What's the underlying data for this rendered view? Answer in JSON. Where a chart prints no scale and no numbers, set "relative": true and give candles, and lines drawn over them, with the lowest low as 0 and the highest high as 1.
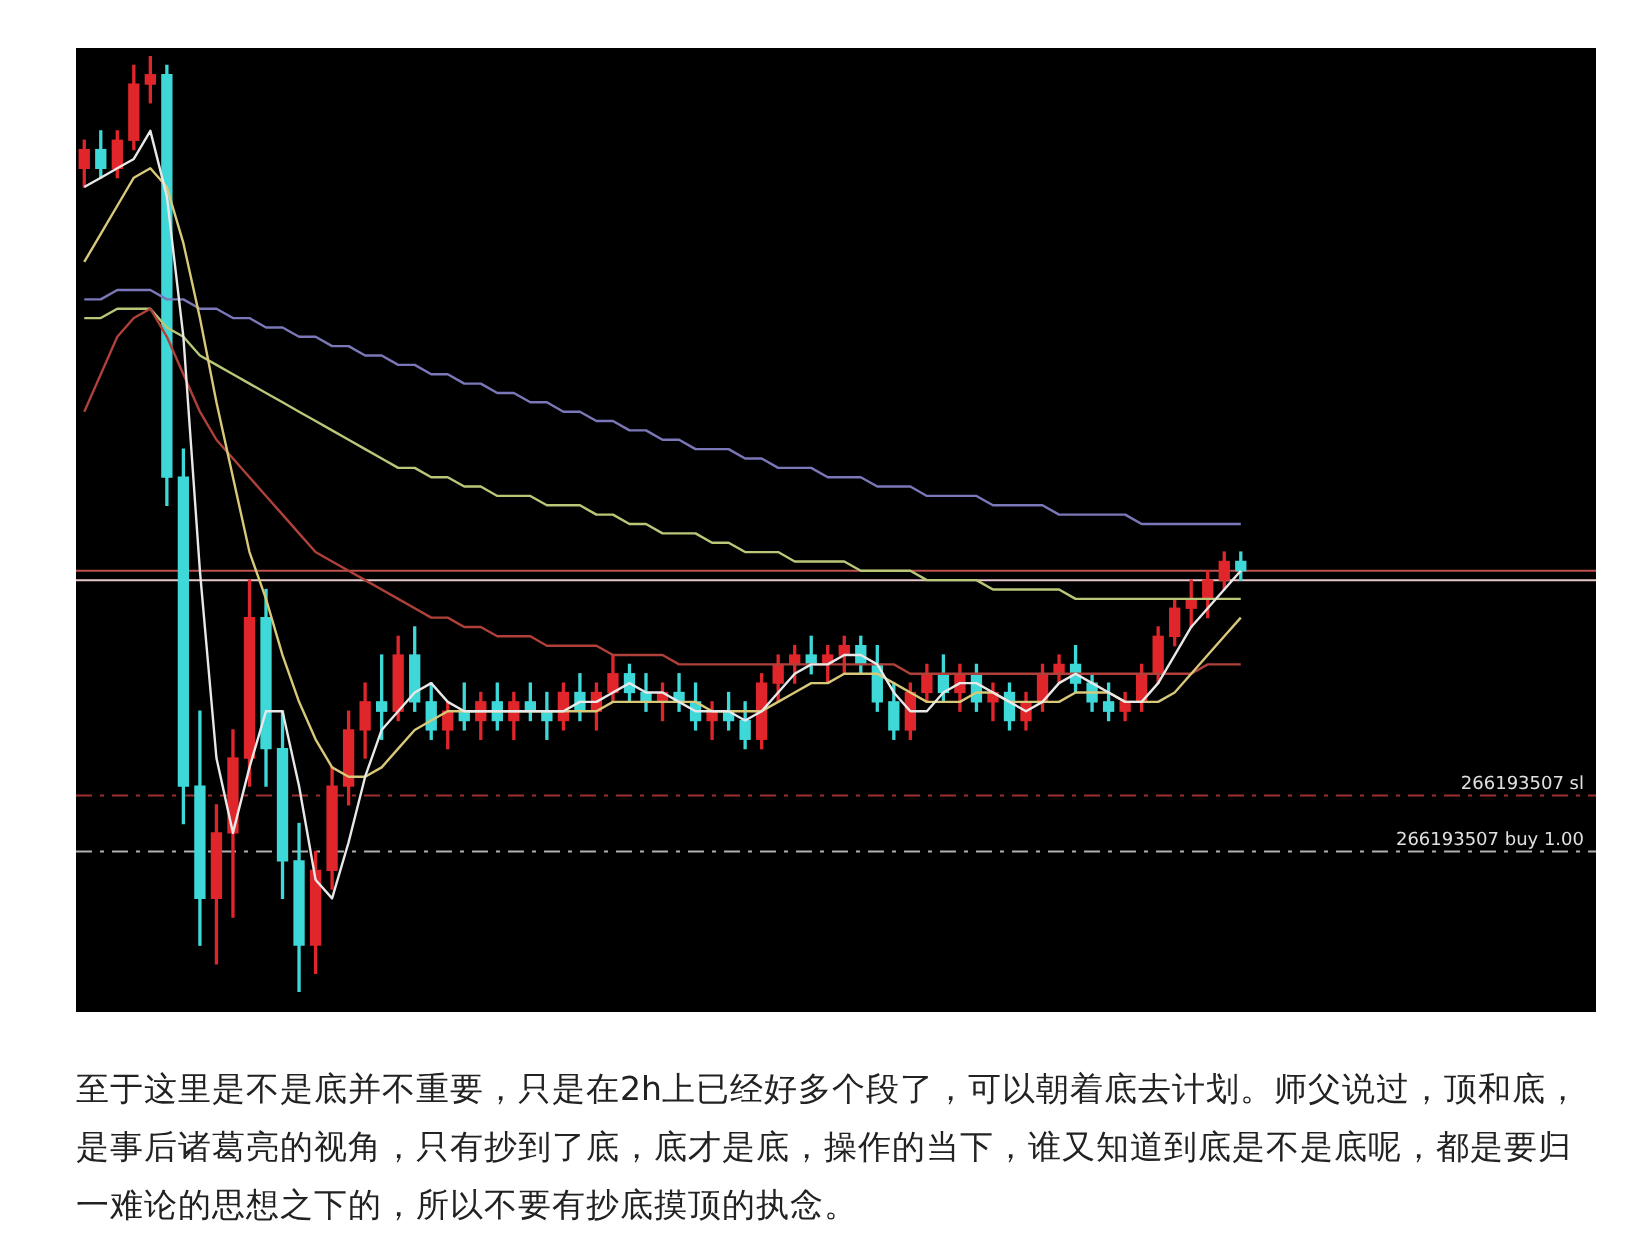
{
  "chart_data": {
    "type": "candlestick",
    "relative": true,
    "legend": false,
    "tick_labels": false,
    "categories": [
      null,
      null,
      null,
      null,
      null,
      null,
      null,
      null,
      null,
      null,
      null,
      null,
      null,
      null,
      null,
      null,
      null,
      null,
      null,
      null,
      null,
      null,
      null,
      null,
      null,
      null,
      null,
      null,
      null,
      null,
      null,
      null,
      null,
      null,
      null,
      null,
      null,
      null,
      null,
      null,
      null,
      null,
      null,
      null,
      null,
      null,
      null,
      null,
      null,
      null,
      null,
      null,
      null,
      null,
      null,
      null,
      null,
      null,
      null,
      null,
      null,
      null,
      null,
      null,
      null,
      null,
      null,
      null,
      null,
      null,
      null,
      null,
      null,
      null,
      null,
      null,
      null,
      null,
      null,
      null,
      null,
      null,
      null,
      null,
      null,
      null,
      null,
      null,
      null,
      null,
      null,
      null
    ],
    "ohlc": [
      [
        0.88,
        0.91,
        0.86,
        0.9
      ],
      [
        0.9,
        0.92,
        0.87,
        0.88
      ],
      [
        0.88,
        0.92,
        0.87,
        0.91
      ],
      [
        0.91,
        0.99,
        0.9,
        0.97
      ],
      [
        0.97,
        1.0,
        0.95,
        0.98
      ],
      [
        0.98,
        0.99,
        0.52,
        0.55
      ],
      [
        0.55,
        0.58,
        0.18,
        0.22
      ],
      [
        0.22,
        0.3,
        0.05,
        0.1
      ],
      [
        0.1,
        0.2,
        0.03,
        0.17
      ],
      [
        0.17,
        0.28,
        0.08,
        0.25
      ],
      [
        0.25,
        0.44,
        0.22,
        0.4
      ],
      [
        0.4,
        0.43,
        0.22,
        0.26
      ],
      [
        0.26,
        0.3,
        0.1,
        0.14
      ],
      [
        0.14,
        0.18,
        0.0,
        0.05
      ],
      [
        0.05,
        0.15,
        0.02,
        0.13
      ],
      [
        0.13,
        0.24,
        0.11,
        0.22
      ],
      [
        0.22,
        0.3,
        0.2,
        0.28
      ],
      [
        0.28,
        0.33,
        0.25,
        0.31
      ],
      [
        0.31,
        0.36,
        0.27,
        0.3
      ],
      [
        0.3,
        0.38,
        0.29,
        0.36
      ],
      [
        0.36,
        0.39,
        0.3,
        0.31
      ],
      [
        0.31,
        0.33,
        0.27,
        0.28
      ],
      [
        0.28,
        0.31,
        0.26,
        0.3
      ],
      [
        0.3,
        0.33,
        0.28,
        0.29
      ],
      [
        0.29,
        0.32,
        0.27,
        0.31
      ],
      [
        0.31,
        0.33,
        0.28,
        0.29
      ],
      [
        0.29,
        0.32,
        0.27,
        0.31
      ],
      [
        0.31,
        0.33,
        0.29,
        0.3
      ],
      [
        0.3,
        0.32,
        0.27,
        0.29
      ],
      [
        0.29,
        0.33,
        0.28,
        0.32
      ],
      [
        0.32,
        0.34,
        0.29,
        0.3
      ],
      [
        0.3,
        0.33,
        0.28,
        0.32
      ],
      [
        0.32,
        0.36,
        0.31,
        0.34
      ],
      [
        0.34,
        0.35,
        0.31,
        0.32
      ],
      [
        0.32,
        0.34,
        0.3,
        0.31
      ],
      [
        0.31,
        0.33,
        0.29,
        0.32
      ],
      [
        0.32,
        0.34,
        0.3,
        0.31
      ],
      [
        0.31,
        0.33,
        0.28,
        0.29
      ],
      [
        0.29,
        0.31,
        0.27,
        0.3
      ],
      [
        0.3,
        0.32,
        0.28,
        0.29
      ],
      [
        0.29,
        0.31,
        0.26,
        0.27
      ],
      [
        0.27,
        0.34,
        0.26,
        0.33
      ],
      [
        0.33,
        0.36,
        0.31,
        0.35
      ],
      [
        0.35,
        0.37,
        0.33,
        0.36
      ],
      [
        0.36,
        0.38,
        0.34,
        0.35
      ],
      [
        0.35,
        0.37,
        0.33,
        0.36
      ],
      [
        0.36,
        0.38,
        0.34,
        0.37
      ],
      [
        0.37,
        0.38,
        0.34,
        0.35
      ],
      [
        0.35,
        0.37,
        0.3,
        0.31
      ],
      [
        0.31,
        0.33,
        0.27,
        0.28
      ],
      [
        0.28,
        0.33,
        0.27,
        0.32
      ],
      [
        0.32,
        0.35,
        0.31,
        0.34
      ],
      [
        0.34,
        0.36,
        0.31,
        0.32
      ],
      [
        0.32,
        0.35,
        0.3,
        0.34
      ],
      [
        0.34,
        0.35,
        0.3,
        0.31
      ],
      [
        0.31,
        0.33,
        0.29,
        0.32
      ],
      [
        0.32,
        0.33,
        0.28,
        0.29
      ],
      [
        0.29,
        0.32,
        0.28,
        0.31
      ],
      [
        0.31,
        0.35,
        0.3,
        0.34
      ],
      [
        0.34,
        0.36,
        0.33,
        0.35
      ],
      [
        0.35,
        0.37,
        0.32,
        0.33
      ],
      [
        0.33,
        0.34,
        0.3,
        0.31
      ],
      [
        0.31,
        0.33,
        0.29,
        0.3
      ],
      [
        0.3,
        0.32,
        0.29,
        0.31
      ],
      [
        0.31,
        0.35,
        0.3,
        0.34
      ],
      [
        0.34,
        0.39,
        0.33,
        0.38
      ],
      [
        0.38,
        0.42,
        0.37,
        0.41
      ],
      [
        0.41,
        0.44,
        0.39,
        0.42
      ],
      [
        0.42,
        0.45,
        0.4,
        0.44
      ],
      [
        0.44,
        0.47,
        0.43,
        0.46
      ],
      [
        0.46,
        0.47,
        0.44,
        0.45
      ],
      null,
      null,
      null,
      null,
      null,
      null,
      null,
      null,
      null,
      null,
      null,
      null,
      null,
      null,
      null,
      null,
      null,
      null,
      null,
      null,
      null
    ],
    "colors": [
      "#e0262a",
      "#3fd8d8",
      "#e0262a",
      "#e0262a",
      "#e0262a",
      "#3fd8d8",
      "#3fd8d8",
      "#3fd8d8",
      "#e0262a",
      "#e0262a",
      "#e0262a",
      "#3fd8d8",
      "#3fd8d8",
      "#3fd8d8",
      "#e0262a",
      "#e0262a",
      "#e0262a",
      "#e0262a",
      "#3fd8d8",
      "#e0262a",
      "#3fd8d8",
      "#3fd8d8",
      "#e0262a",
      "#3fd8d8",
      "#e0262a",
      "#3fd8d8",
      "#e0262a",
      "#3fd8d8",
      "#3fd8d8",
      "#e0262a",
      "#3fd8d8",
      "#e0262a",
      "#e0262a",
      "#3fd8d8",
      "#3fd8d8",
      "#e0262a",
      "#3fd8d8",
      "#3fd8d8",
      "#e0262a",
      "#3fd8d8",
      "#3fd8d8",
      "#e0262a",
      "#e0262a",
      "#e0262a",
      "#3fd8d8",
      "#e0262a",
      "#e0262a",
      "#3fd8d8",
      "#3fd8d8",
      "#3fd8d8",
      "#e0262a",
      "#e0262a",
      "#3fd8d8",
      "#e0262a",
      "#3fd8d8",
      "#e0262a",
      "#3fd8d8",
      "#e0262a",
      "#e0262a",
      "#e0262a",
      "#3fd8d8",
      "#3fd8d8",
      "#3fd8d8",
      "#e0262a",
      "#e0262a",
      "#e0262a",
      "#e0262a",
      "#e0262a",
      "#e0262a",
      "#e0262a",
      "#3fd8d8",
      null,
      null,
      null,
      null,
      null,
      null,
      null,
      null,
      null,
      null,
      null,
      null,
      null,
      null,
      null,
      null,
      null,
      null,
      null,
      null,
      null
    ],
    "series": [
      {
        "type": "line",
        "color": "#e8e8e8",
        "values": [
          0.86,
          0.87,
          0.88,
          0.89,
          0.92,
          0.85,
          0.7,
          0.45,
          0.25,
          0.17,
          0.24,
          0.3,
          0.3,
          0.22,
          0.12,
          0.1,
          0.16,
          0.23,
          0.28,
          0.3,
          0.32,
          0.33,
          0.31,
          0.3,
          0.3,
          0.3,
          0.3,
          0.3,
          0.3,
          0.3,
          0.31,
          0.31,
          0.32,
          0.33,
          0.32,
          0.32,
          0.31,
          0.3,
          0.3,
          0.3,
          0.29,
          0.3,
          0.32,
          0.34,
          0.35,
          0.35,
          0.36,
          0.36,
          0.35,
          0.32,
          0.3,
          0.3,
          0.32,
          0.33,
          0.33,
          0.32,
          0.31,
          0.3,
          0.31,
          0.33,
          0.34,
          0.33,
          0.32,
          0.31,
          0.31,
          0.33,
          0.36,
          0.39,
          0.41,
          0.43,
          0.45,
          null,
          null,
          null,
          null,
          null,
          null,
          null,
          null,
          null,
          null,
          null,
          null,
          null,
          null,
          null,
          null,
          null,
          null,
          null,
          null,
          null
        ]
      },
      {
        "type": "line",
        "color": "#d8c87a",
        "values": [
          0.78,
          0.81,
          0.84,
          0.87,
          0.88,
          0.86,
          0.8,
          0.72,
          0.63,
          0.55,
          0.47,
          0.42,
          0.36,
          0.31,
          0.27,
          0.24,
          0.23,
          0.23,
          0.24,
          0.26,
          0.28,
          0.29,
          0.3,
          0.3,
          0.3,
          0.3,
          0.3,
          0.3,
          0.3,
          0.3,
          0.3,
          0.3,
          0.31,
          0.31,
          0.31,
          0.31,
          0.31,
          0.31,
          0.3,
          0.3,
          0.3,
          0.3,
          0.31,
          0.32,
          0.33,
          0.33,
          0.34,
          0.34,
          0.34,
          0.33,
          0.32,
          0.31,
          0.31,
          0.31,
          0.32,
          0.32,
          0.31,
          0.31,
          0.31,
          0.31,
          0.32,
          0.32,
          0.32,
          0.31,
          0.31,
          0.31,
          0.32,
          0.34,
          0.36,
          0.38,
          0.4,
          null,
          null,
          null,
          null,
          null,
          null,
          null,
          null,
          null,
          null,
          null,
          null,
          null,
          null,
          null,
          null,
          null,
          null,
          null,
          null,
          null
        ]
      },
      {
        "type": "line",
        "color": "#b0403a",
        "values": [
          0.62,
          0.66,
          0.7,
          0.72,
          0.73,
          0.7,
          0.66,
          0.62,
          0.59,
          0.57,
          0.55,
          0.53,
          0.51,
          0.49,
          0.47,
          0.46,
          0.45,
          0.44,
          0.43,
          0.42,
          0.41,
          0.4,
          0.4,
          0.39,
          0.39,
          0.38,
          0.38,
          0.38,
          0.37,
          0.37,
          0.37,
          0.37,
          0.36,
          0.36,
          0.36,
          0.36,
          0.35,
          0.35,
          0.35,
          0.35,
          0.35,
          0.35,
          0.35,
          0.35,
          0.35,
          0.35,
          0.35,
          0.35,
          0.35,
          0.35,
          0.34,
          0.34,
          0.34,
          0.34,
          0.34,
          0.34,
          0.34,
          0.34,
          0.34,
          0.34,
          0.34,
          0.34,
          0.34,
          0.34,
          0.34,
          0.34,
          0.34,
          0.34,
          0.35,
          0.35,
          0.35,
          null,
          null,
          null,
          null,
          null,
          null,
          null,
          null,
          null,
          null,
          null,
          null,
          null,
          null,
          null,
          null,
          null,
          null,
          null,
          null,
          null
        ]
      },
      {
        "type": "line",
        "color": "#b8c878",
        "values": [
          0.72,
          0.72,
          0.73,
          0.73,
          0.73,
          0.71,
          0.7,
          0.68,
          0.67,
          0.66,
          0.65,
          0.64,
          0.63,
          0.62,
          0.61,
          0.6,
          0.59,
          0.58,
          0.57,
          0.56,
          0.56,
          0.55,
          0.55,
          0.54,
          0.54,
          0.53,
          0.53,
          0.53,
          0.52,
          0.52,
          0.52,
          0.51,
          0.51,
          0.5,
          0.5,
          0.49,
          0.49,
          0.49,
          0.48,
          0.48,
          0.47,
          0.47,
          0.47,
          0.46,
          0.46,
          0.46,
          0.46,
          0.45,
          0.45,
          0.45,
          0.45,
          0.44,
          0.44,
          0.44,
          0.44,
          0.43,
          0.43,
          0.43,
          0.43,
          0.43,
          0.42,
          0.42,
          0.42,
          0.42,
          0.42,
          0.42,
          0.42,
          0.42,
          0.42,
          0.42,
          0.42,
          null,
          null,
          null,
          null,
          null,
          null,
          null,
          null,
          null,
          null,
          null,
          null,
          null,
          null,
          null,
          null,
          null,
          null,
          null,
          null,
          null
        ]
      },
      {
        "type": "line",
        "color": "#7a78b8",
        "values": [
          0.74,
          0.74,
          0.75,
          0.75,
          0.75,
          0.74,
          0.74,
          0.73,
          0.73,
          0.72,
          0.72,
          0.71,
          0.71,
          0.7,
          0.7,
          0.69,
          0.69,
          0.68,
          0.68,
          0.67,
          0.67,
          0.66,
          0.66,
          0.65,
          0.65,
          0.64,
          0.64,
          0.63,
          0.63,
          0.62,
          0.62,
          0.61,
          0.61,
          0.6,
          0.6,
          0.59,
          0.59,
          0.58,
          0.58,
          0.58,
          0.57,
          0.57,
          0.56,
          0.56,
          0.56,
          0.55,
          0.55,
          0.55,
          0.54,
          0.54,
          0.54,
          0.53,
          0.53,
          0.53,
          0.53,
          0.52,
          0.52,
          0.52,
          0.52,
          0.51,
          0.51,
          0.51,
          0.51,
          0.51,
          0.5,
          0.5,
          0.5,
          0.5,
          0.5,
          0.5,
          0.5,
          null,
          null,
          null,
          null,
          null,
          null,
          null,
          null,
          null,
          null,
          null,
          null,
          null,
          null,
          null,
          null,
          null,
          null,
          null,
          null,
          null
        ]
      }
    ],
    "ref_lines": [
      {
        "axis": "y",
        "value": 0.45,
        "color": "#c0504d",
        "line_style": "solid"
      },
      {
        "axis": "y",
        "value": 0.44,
        "color": "#e8c8c8",
        "line_style": "solid"
      },
      {
        "axis": "y",
        "value": 0.21,
        "label": "266193507 sl",
        "color": "#a03030",
        "line_style": "dashed"
      },
      {
        "axis": "y",
        "value": 0.15,
        "label": "266193507 buy 1.00",
        "color": "#b0b0b0",
        "line_style": "dashed"
      }
    ],
    "annotations": [
      "至于这里是不是底并不重要，只是在2h上已经好多个段了，可以朝着底去计划。师父说过，顶和底，是事后诸葛亮的视角，只有抄到了底，底才是底，操作的当下，谁又知道到底是不是底呢，都是要归一难论的思想之下的，所以不要有抄底摸顶的执念。"
    ]
  }
}
